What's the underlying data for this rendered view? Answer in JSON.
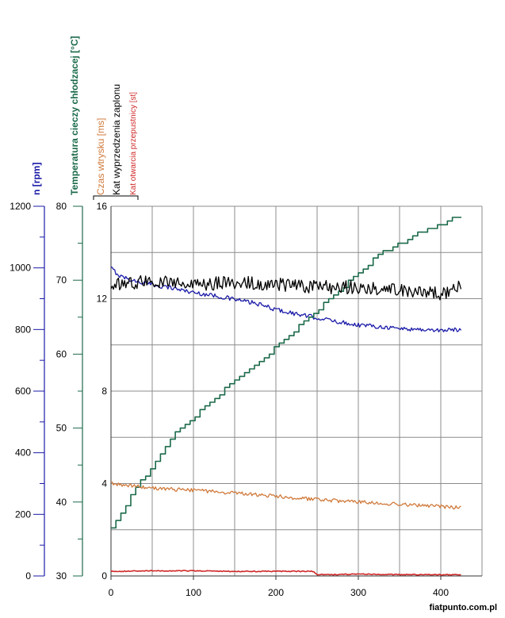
{
  "chart_data": {
    "type": "line",
    "grid": true,
    "x": {
      "ticks": [
        0,
        100,
        200,
        300,
        400
      ],
      "range": [
        0,
        450
      ]
    },
    "axes": [
      {
        "id": "rpm",
        "label": "n [rpm]",
        "color": "#1a1aa8",
        "range": [
          0,
          1200
        ],
        "ticks": [
          0,
          200,
          400,
          600,
          800,
          1000,
          1200
        ],
        "tick_labels": [
          "0",
          "200",
          "400",
          "600",
          "800",
          "1000",
          "1200"
        ]
      },
      {
        "id": "temp",
        "label": "Temperatura cieczy chłodzacej [°C]",
        "color": "#1b6a4a",
        "range": [
          30,
          80
        ],
        "ticks": [
          30,
          40,
          50,
          60,
          70,
          80
        ],
        "tick_labels": [
          "30",
          "40",
          "50",
          "60",
          "70",
          "80"
        ]
      },
      {
        "id": "inj",
        "label": "Czas wtrysku [ms]",
        "color": "#d07a3c",
        "range": [
          0,
          16
        ],
        "ticks": [
          0,
          4,
          8,
          12,
          16
        ],
        "tick_labels": [
          "0",
          "4",
          "8",
          "12",
          "16"
        ]
      },
      {
        "id": "ign",
        "label": "Kat wyprzedzenia zaplonu",
        "color": "#000000",
        "range": [
          0,
          16
        ]
      },
      {
        "id": "thr",
        "label": "Kat otwarcia przepustnicy [st]",
        "color": "#d02828",
        "range": [
          0,
          16
        ]
      }
    ],
    "series": [
      {
        "name": "n [rpm]",
        "axis": "rpm",
        "color": "#1a1aa8",
        "points": [
          [
            0,
            1000
          ],
          [
            10,
            975
          ],
          [
            25,
            960
          ],
          [
            50,
            945
          ],
          [
            75,
            935
          ],
          [
            100,
            920
          ],
          [
            125,
            910
          ],
          [
            150,
            898
          ],
          [
            175,
            885
          ],
          [
            200,
            865
          ],
          [
            225,
            850
          ],
          [
            250,
            838
          ],
          [
            275,
            825
          ],
          [
            300,
            815
          ],
          [
            325,
            810
          ],
          [
            350,
            803
          ],
          [
            375,
            800
          ],
          [
            400,
            797
          ],
          [
            425,
            800
          ]
        ],
        "noise": 7
      },
      {
        "name": "Temperatura cieczy chłodzacej [°C]",
        "axis": "temp",
        "color": "#1b6a4a",
        "steps": true,
        "points": [
          [
            0,
            36.5
          ],
          [
            12,
            38.5
          ],
          [
            25,
            41
          ],
          [
            50,
            45
          ],
          [
            75,
            49
          ],
          [
            100,
            51.5
          ],
          [
            125,
            54
          ],
          [
            150,
            56.5
          ],
          [
            175,
            58.5
          ],
          [
            200,
            61
          ],
          [
            225,
            63.5
          ],
          [
            250,
            66
          ],
          [
            275,
            68.5
          ],
          [
            300,
            71
          ],
          [
            325,
            73.5
          ],
          [
            350,
            75
          ],
          [
            375,
            76.5
          ],
          [
            400,
            77.5
          ],
          [
            425,
            79
          ]
        ]
      },
      {
        "name": "Czas wtrysku [ms]",
        "axis": "inj",
        "color": "#d07a3c",
        "points": [
          [
            0,
            4.0
          ],
          [
            25,
            3.9
          ],
          [
            50,
            3.8
          ],
          [
            75,
            3.75
          ],
          [
            100,
            3.7
          ],
          [
            150,
            3.6
          ],
          [
            200,
            3.45
          ],
          [
            250,
            3.3
          ],
          [
            300,
            3.2
          ],
          [
            350,
            3.1
          ],
          [
            400,
            3.0
          ],
          [
            425,
            2.95
          ]
        ],
        "noise": 0.08
      },
      {
        "name": "Kat wyprzedzenia zaplonu",
        "axis": "ign",
        "color": "#000000",
        "points": [
          [
            0,
            12.6
          ],
          [
            50,
            12.8
          ],
          [
            100,
            12.6
          ],
          [
            150,
            12.7
          ],
          [
            200,
            12.6
          ],
          [
            250,
            12.5
          ],
          [
            300,
            12.5
          ],
          [
            350,
            12.4
          ],
          [
            400,
            12.2
          ],
          [
            425,
            12.6
          ]
        ],
        "noise": 0.3
      },
      {
        "name": "Kat otwarcia przepustnicy [st]",
        "axis": "thr",
        "color": "#d02828",
        "points": [
          [
            0,
            0.2
          ],
          [
            50,
            0.22
          ],
          [
            100,
            0.22
          ],
          [
            150,
            0.2
          ],
          [
            200,
            0.2
          ],
          [
            245,
            0.2
          ],
          [
            250,
            0.05
          ],
          [
            300,
            0.08
          ],
          [
            350,
            0.06
          ],
          [
            425,
            0.05
          ]
        ],
        "noise": 0.02
      }
    ]
  },
  "footer": {
    "watermark": "fiatpunto.com.pl"
  }
}
